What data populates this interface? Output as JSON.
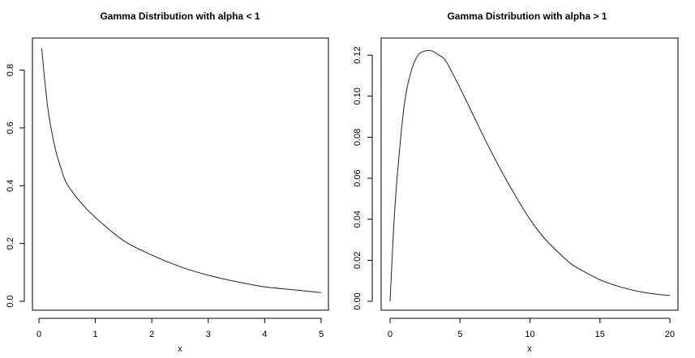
{
  "chart_data": [
    {
      "type": "line",
      "title": "Gamma Distribution with alpha < 1",
      "xlabel": "x",
      "ylabel": "",
      "xlim": [
        0,
        5
      ],
      "ylim": [
        0,
        0.88
      ],
      "x_ticks": [
        "0",
        "1",
        "2",
        "3",
        "4",
        "5"
      ],
      "y_ticks": [
        "0.0",
        "0.2",
        "0.4",
        "0.6",
        "0.8"
      ],
      "grid": false,
      "series": [
        {
          "x": [
            0.05,
            0.1,
            0.15,
            0.2,
            0.3,
            0.4,
            0.5,
            0.75,
            1.0,
            1.5,
            2.0,
            2.5,
            3.0,
            3.5,
            4.0,
            4.5,
            5.0
          ],
          "values": [
            0.874,
            0.77,
            0.68,
            0.615,
            0.52,
            0.455,
            0.405,
            0.34,
            0.29,
            0.21,
            0.16,
            0.12,
            0.09,
            0.068,
            0.05,
            0.04,
            0.03
          ]
        }
      ]
    },
    {
      "type": "line",
      "title": "Gamma Distribution with alpha > 1",
      "xlabel": "x",
      "ylabel": "",
      "xlim": [
        0,
        20
      ],
      "ylim": [
        0,
        0.124
      ],
      "x_ticks": [
        "0",
        "5",
        "10",
        "15",
        "20"
      ],
      "y_ticks": [
        "0.00",
        "0.02",
        "0.04",
        "0.06",
        "0.08",
        "0.10",
        "0.12"
      ],
      "grid": false,
      "series": [
        {
          "x": [
            0,
            0.25,
            0.5,
            1,
            1.5,
            2,
            2.5,
            3,
            3.5,
            4,
            5,
            6,
            7,
            8,
            9,
            10,
            11,
            12,
            13,
            14,
            15,
            16,
            17,
            18,
            19,
            20
          ],
          "values": [
            0,
            0.035,
            0.06,
            0.095,
            0.112,
            0.12,
            0.122,
            0.122,
            0.12,
            0.117,
            0.104,
            0.09,
            0.076,
            0.063,
            0.051,
            0.04,
            0.031,
            0.024,
            0.018,
            0.014,
            0.0105,
            0.008,
            0.006,
            0.0045,
            0.0035,
            0.0028
          ]
        }
      ]
    }
  ]
}
